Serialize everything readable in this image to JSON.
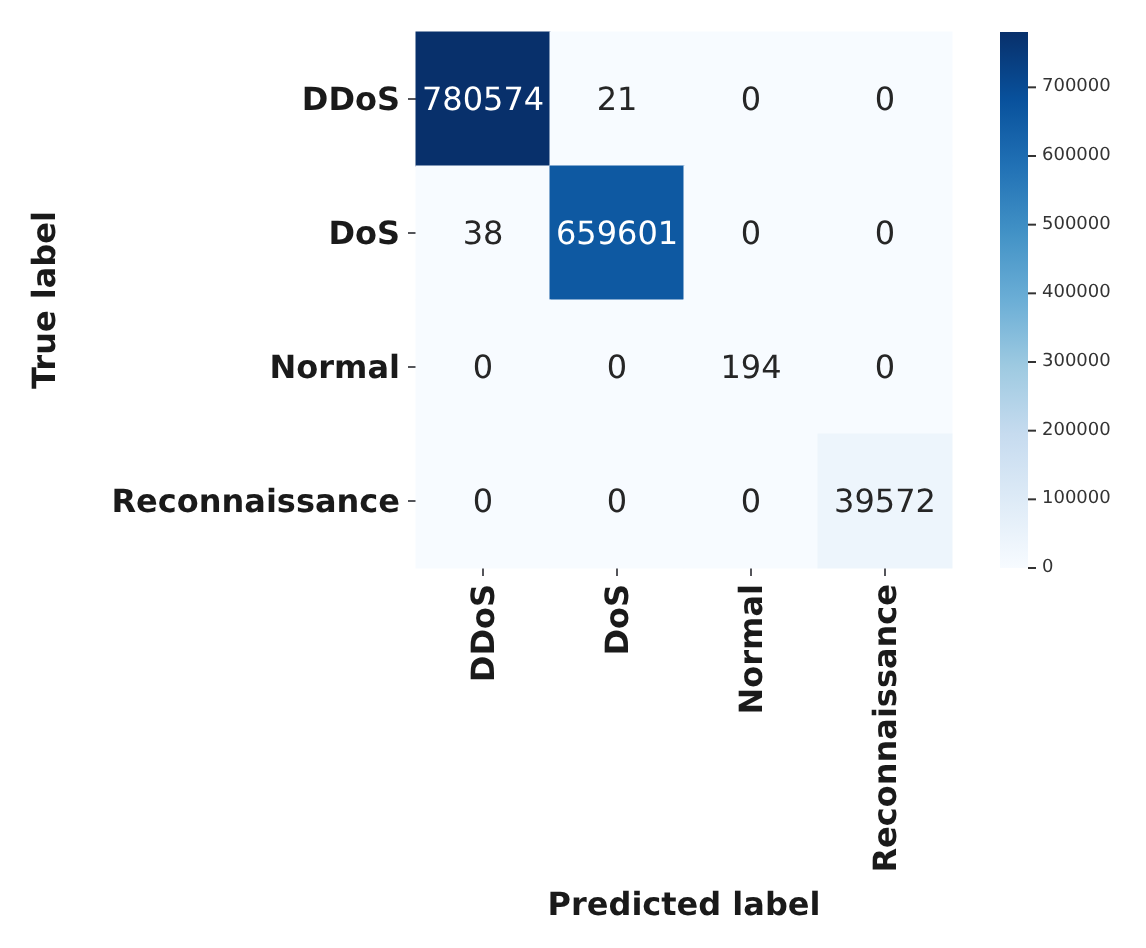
{
  "chart_data": {
    "type": "heatmap",
    "categories": [
      "DDoS",
      "DoS",
      "Normal",
      "Reconnaissance"
    ],
    "y_categories": [
      "DDoS",
      "DoS",
      "Normal",
      "Reconnaissance"
    ],
    "cells": [
      [
        780574,
        21,
        0,
        0
      ],
      [
        38,
        659601,
        0,
        0
      ],
      [
        0,
        0,
        194,
        0
      ],
      [
        0,
        0,
        0,
        39572
      ]
    ],
    "clim": [
      0,
      780574
    ],
    "cticks": [
      0,
      100000,
      200000,
      300000,
      400000,
      500000,
      600000,
      700000
    ],
    "xlabel": "Predicted label",
    "ylabel": "True label",
    "data_labels": true
  }
}
